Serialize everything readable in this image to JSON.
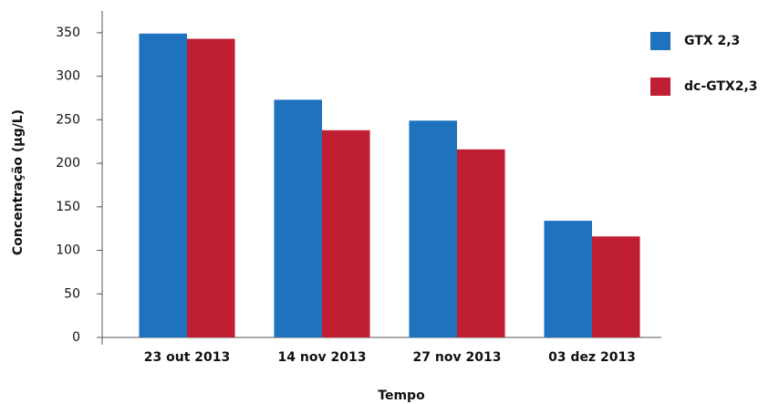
{
  "chart_data": {
    "type": "bar",
    "y_label": "Concentração (µg/L)",
    "x_label": "Tempo",
    "categories": [
      "23 out 2013",
      "14 nov 2013",
      "27 nov 2013",
      "03 dez 2013"
    ],
    "series": [
      {
        "name": "GTX 2,3",
        "color": "#1f72bd",
        "values": [
          349,
          273,
          249,
          134
        ]
      },
      {
        "name": "dc-GTX2,3",
        "color": "#c01f33",
        "values": [
          343,
          238,
          216,
          116
        ]
      }
    ],
    "ylim": [
      0,
      375
    ],
    "yticks": [
      0,
      50,
      100,
      150,
      200,
      250,
      300,
      350
    ],
    "legend": "right"
  }
}
